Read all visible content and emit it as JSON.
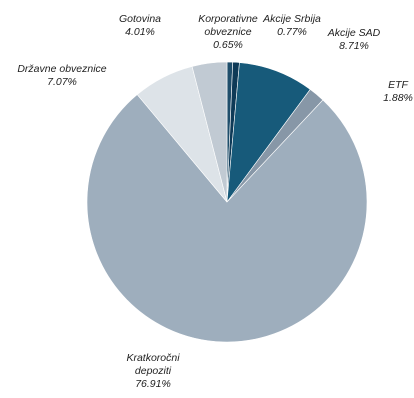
{
  "chart_data": {
    "type": "pie",
    "slices": [
      {
        "label": [
          "Korporativne",
          "obveznice"
        ],
        "value_label": "0.65%",
        "value": 0.65,
        "color": "#1f4e6b"
      },
      {
        "label": [
          "Akcije Srbija"
        ],
        "value_label": "0.77%",
        "value": 0.77,
        "color": "#0e3a57"
      },
      {
        "label": [
          "Akcije SAD"
        ],
        "value_label": "8.71%",
        "value": 8.71,
        "color": "#175a7a"
      },
      {
        "label": [
          "ETF"
        ],
        "value_label": "1.88%",
        "value": 1.88,
        "color": "#8797a7"
      },
      {
        "label": [
          "Kratkoročni",
          "depoziti"
        ],
        "value_label": "76.91%",
        "value": 76.91,
        "color": "#9eaebd"
      },
      {
        "label": [
          "Državne obveznice"
        ],
        "value_label": "7.07%",
        "value": 7.07,
        "color": "#dde3e8"
      },
      {
        "label": [
          "Gotovina"
        ],
        "value_label": "4.01%",
        "value": 4.01,
        "color": "#c1cad3"
      }
    ]
  }
}
